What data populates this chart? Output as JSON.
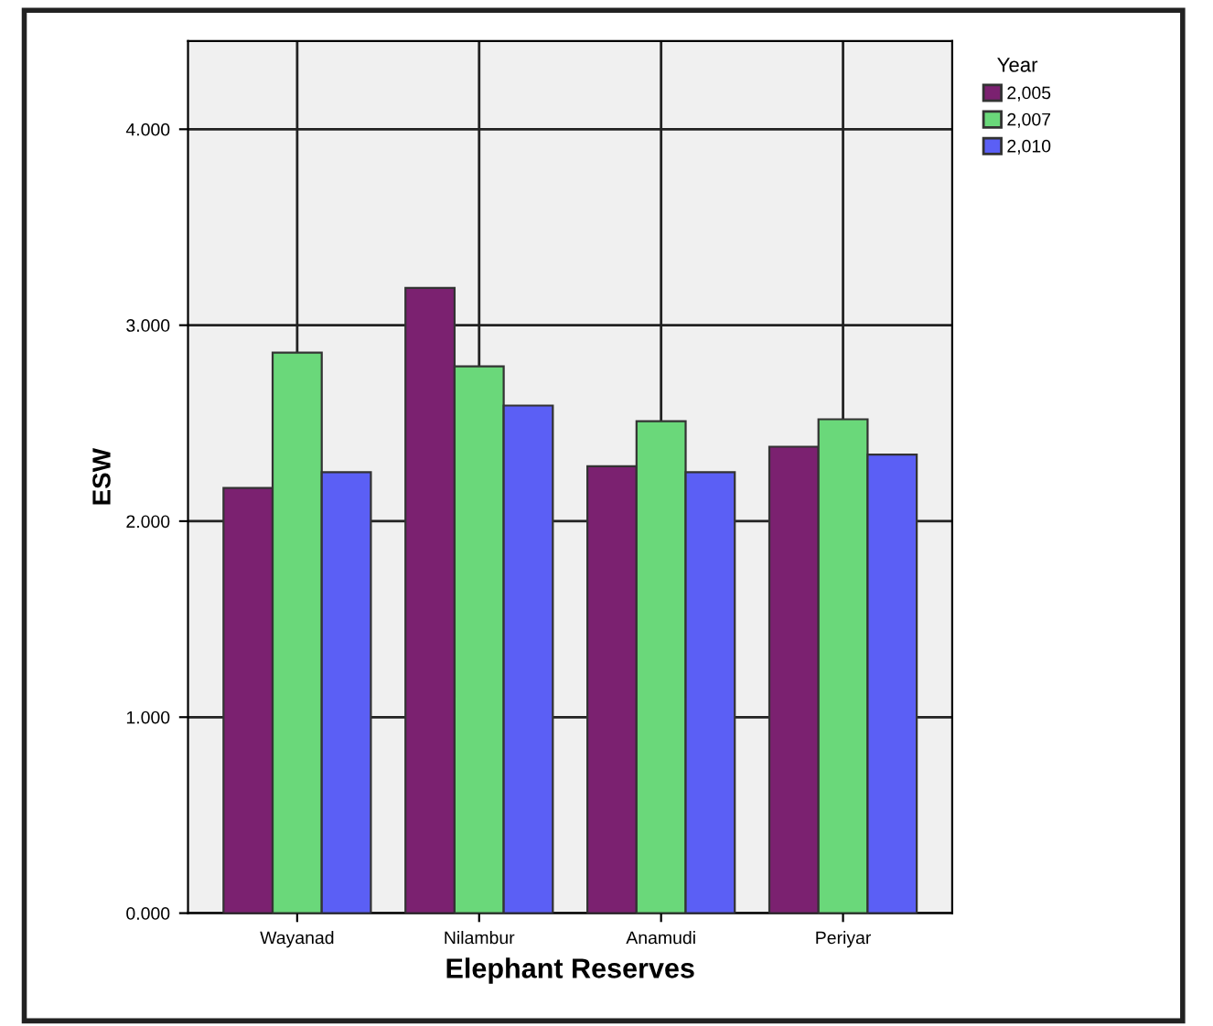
{
  "chart_data": {
    "type": "bar",
    "xlabel": "Elephant Reserves",
    "ylabel": "ESW",
    "legend_title": "Year",
    "categories": [
      "Wayanad",
      "Nilambur",
      "Anamudi",
      "Periyar"
    ],
    "series": [
      {
        "name": "2,005",
        "color": "#7b2170",
        "values": [
          2.17,
          3.19,
          2.28,
          2.38
        ]
      },
      {
        "name": "2,007",
        "color": "#6ad87a",
        "values": [
          2.86,
          2.79,
          2.51,
          2.52
        ]
      },
      {
        "name": "2,010",
        "color": "#5b5ff5",
        "values": [
          2.25,
          2.59,
          2.25,
          2.34
        ]
      }
    ],
    "ylim": [
      0,
      4.45
    ],
    "yticks": [
      {
        "value": 0,
        "label": "0.000"
      },
      {
        "value": 1,
        "label": "1.000"
      },
      {
        "value": 2,
        "label": "2.000"
      },
      {
        "value": 3,
        "label": "3.000"
      },
      {
        "value": 4,
        "label": "4.000"
      }
    ],
    "grid": true,
    "legend": "top right"
  }
}
